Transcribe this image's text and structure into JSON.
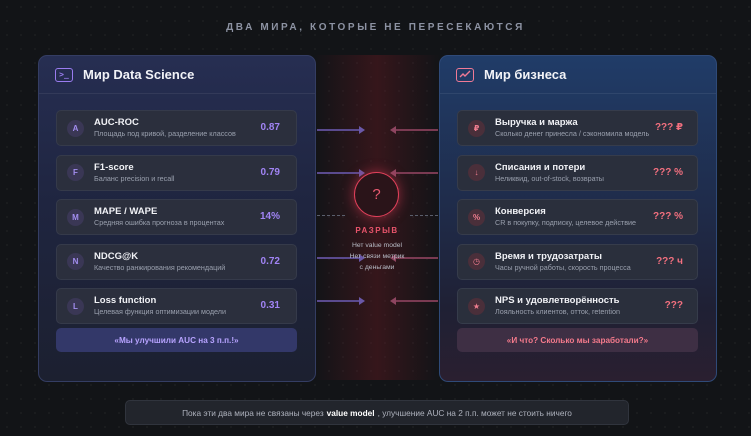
{
  "page_title": "ДВА МИРА, КОТОРЫЕ НЕ ПЕРЕСЕКАЮТСЯ",
  "left_panel": {
    "icon": ">_",
    "title": "Мир Data Science",
    "metrics": [
      {
        "badge": "A",
        "title": "AUC-ROC",
        "subtitle": "Площадь под кривой, разделение классов",
        "value": "0.87"
      },
      {
        "badge": "F",
        "title": "F1-score",
        "subtitle": "Баланс precision и recall",
        "value": "0.79"
      },
      {
        "badge": "M",
        "title": "MAPE / WAPE",
        "subtitle": "Средняя ошибка прогноза в процентах",
        "value": "14%"
      },
      {
        "badge": "N",
        "title": "NDCG@K",
        "subtitle": "Качество ранжирования рекомендаций",
        "value": "0.72"
      },
      {
        "badge": "L",
        "title": "Loss function",
        "subtitle": "Целевая функция оптимизации модели",
        "value": "0.31"
      }
    ],
    "footer": "«Мы улучшили AUC на 3 п.п.!»",
    "accent_color": "#a184f5"
  },
  "right_panel": {
    "icon": "trend-chart-icon",
    "title": "Мир бизнеса",
    "metrics": [
      {
        "badge": "₽",
        "title": "Выручка и маржа",
        "subtitle": "Сколько денег принесла / сэкономила модель",
        "value": "??? ₽"
      },
      {
        "badge": "↓",
        "title": "Списания и потери",
        "subtitle": "Неликвид, out-of-stock, возвраты",
        "value": "??? %"
      },
      {
        "badge": "%",
        "title": "Конверсия",
        "subtitle": "CR в покупку, подписку, целевое действие",
        "value": "??? %"
      },
      {
        "badge": "◷",
        "title": "Время и трудозатраты",
        "subtitle": "Часы ручной работы, скорость процесса",
        "value": "??? ч"
      },
      {
        "badge": "★",
        "title": "NPS и удовлетворённость",
        "subtitle": "Лояльность клиентов, отток, retention",
        "value": "???"
      }
    ],
    "footer": "«И что? Сколько мы заработали?»",
    "accent_color": "#f3707f"
  },
  "gap": {
    "symbol": "?",
    "label": "РАЗРЫВ",
    "notes": [
      "Нет value model",
      "Нет связи метрик",
      "с деньгами"
    ],
    "color": "#e0405a"
  },
  "bottom_note": {
    "before": "Пока эти два мира не связаны через",
    "bold": "value model",
    "after": ", улучшение AUC на 2 п.п. может не стоить ничего"
  }
}
